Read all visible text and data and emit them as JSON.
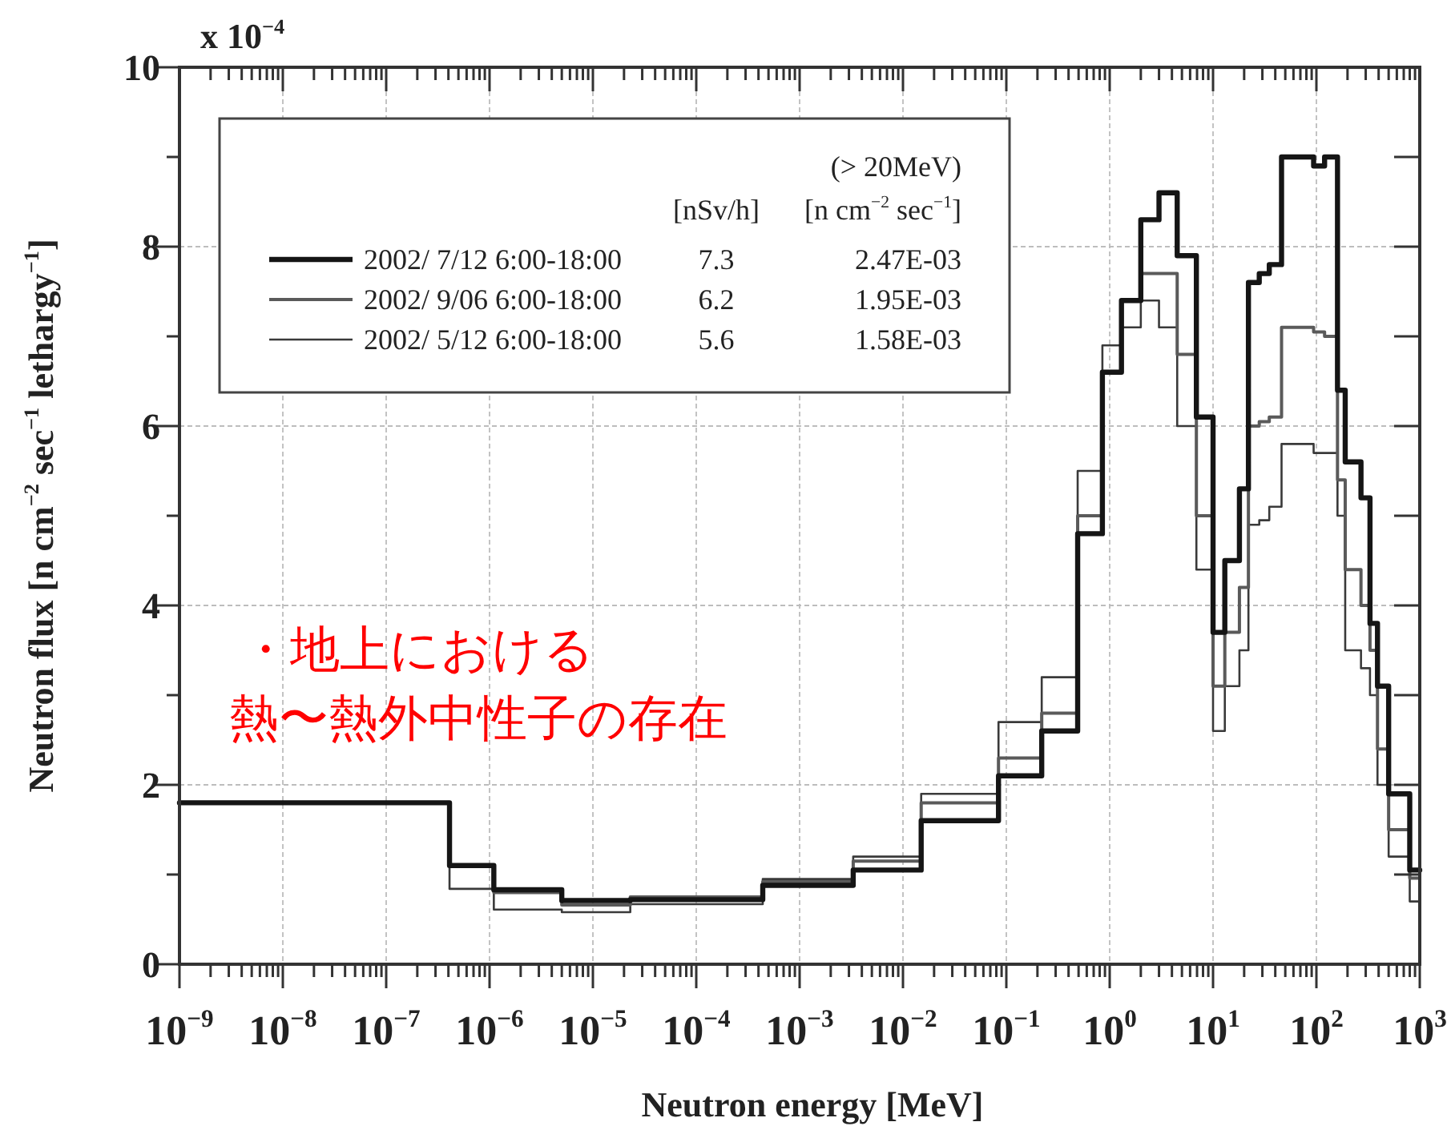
{
  "chart_data": {
    "type": "step",
    "xlabel": "Neutron energy [MeV]",
    "ylabel": "Neutron flux [n cm$^{−2}$ sec$^{−1}$ lethargy$^{−1}$]",
    "x": [
      1e-09,
      4.1e-07,
      1.1e-06,
      5e-06,
      2.3e-05,
      0.00044,
      0.0033,
      0.015,
      0.084,
      0.22,
      0.49,
      0.85,
      1.3,
      2.0,
      3.0,
      4.5,
      6.9,
      10,
      13,
      18,
      22,
      28,
      35,
      46,
      94,
      120,
      160,
      190,
      270,
      330,
      390,
      500,
      800,
      1000
    ],
    "series": [
      {
        "name": "2002/ 7/12 6:00-18:00",
        "color": "#151515",
        "values": [
          1.8,
          1.1,
          0.83,
          0.71,
          0.72,
          0.88,
          1.05,
          1.6,
          2.1,
          2.6,
          4.8,
          6.6,
          7.4,
          8.3,
          8.6,
          7.9,
          6.1,
          3.7,
          4.5,
          5.3,
          7.6,
          7.7,
          7.8,
          9.0,
          8.9,
          9.0,
          6.4,
          5.6,
          5.2,
          3.8,
          3.1,
          1.9,
          1.05,
          1.05
        ]
      },
      {
        "name": "2002/ 9/06 6:00-18:00",
        "color": "#5a5a5a",
        "values": [
          1.8,
          1.1,
          0.8,
          0.66,
          0.75,
          0.92,
          1.15,
          1.8,
          2.3,
          2.8,
          5.0,
          6.6,
          7.4,
          7.7,
          7.7,
          6.8,
          5.0,
          3.1,
          3.7,
          4.2,
          6.0,
          6.05,
          6.1,
          7.1,
          7.05,
          7.0,
          5.4,
          4.4,
          4.0,
          3.5,
          2.4,
          1.5,
          0.96,
          0.96
        ]
      },
      {
        "name": "2002/ 5/12 6:00-18:00",
        "color": "#3a3a3a",
        "values": [
          1.8,
          0.84,
          0.61,
          0.58,
          0.67,
          0.95,
          1.2,
          1.9,
          2.7,
          3.2,
          5.5,
          6.9,
          7.1,
          7.4,
          7.1,
          6.0,
          4.4,
          2.6,
          3.1,
          3.5,
          4.9,
          4.95,
          5.1,
          5.8,
          5.7,
          5.7,
          5.0,
          3.5,
          3.3,
          3.0,
          2.0,
          1.2,
          0.7,
          0.7
        ]
      }
    ],
    "xlim": [
      1e-09,
      1000
    ],
    "ylim": [
      0,
      10
    ],
    "xticks": [
      {
        "value": 1e-09,
        "label": "10$^{−9}$"
      },
      {
        "value": 1e-08,
        "label": "10$^{−8}$"
      },
      {
        "value": 1e-07,
        "label": "10$^{−7}$"
      },
      {
        "value": 1e-06,
        "label": "10$^{−6}$"
      },
      {
        "value": 1e-05,
        "label": "10$^{−5}$"
      },
      {
        "value": 0.0001,
        "label": "10$^{−4}$"
      },
      {
        "value": 0.001,
        "label": "10$^{−3}$"
      },
      {
        "value": 0.01,
        "label": "10$^{−2}$"
      },
      {
        "value": 0.1,
        "label": "10$^{−1}$"
      },
      {
        "value": 1,
        "label": "10$^{0}$"
      },
      {
        "value": 10,
        "label": "10$^{1}$"
      },
      {
        "value": 100,
        "label": "10$^{2}$"
      },
      {
        "value": 1000,
        "label": "10$^{3}$"
      }
    ],
    "yticks": [
      0,
      2,
      4,
      6,
      8,
      10
    ],
    "log": "x",
    "grid": true,
    "legend": "top left",
    "annotations": [
      "x 10$^{−4}$",
      "・地上における",
      "熱〜熱外中性子の存在",
      "(> 20MeV)",
      "[nSv/h]",
      "[n cm$^{−2}$ sec$^{−1}$]",
      "7.3",
      "2.47E-03",
      "6.2",
      "1.95E-03",
      "5.6",
      "1.58E-03"
    ]
  }
}
